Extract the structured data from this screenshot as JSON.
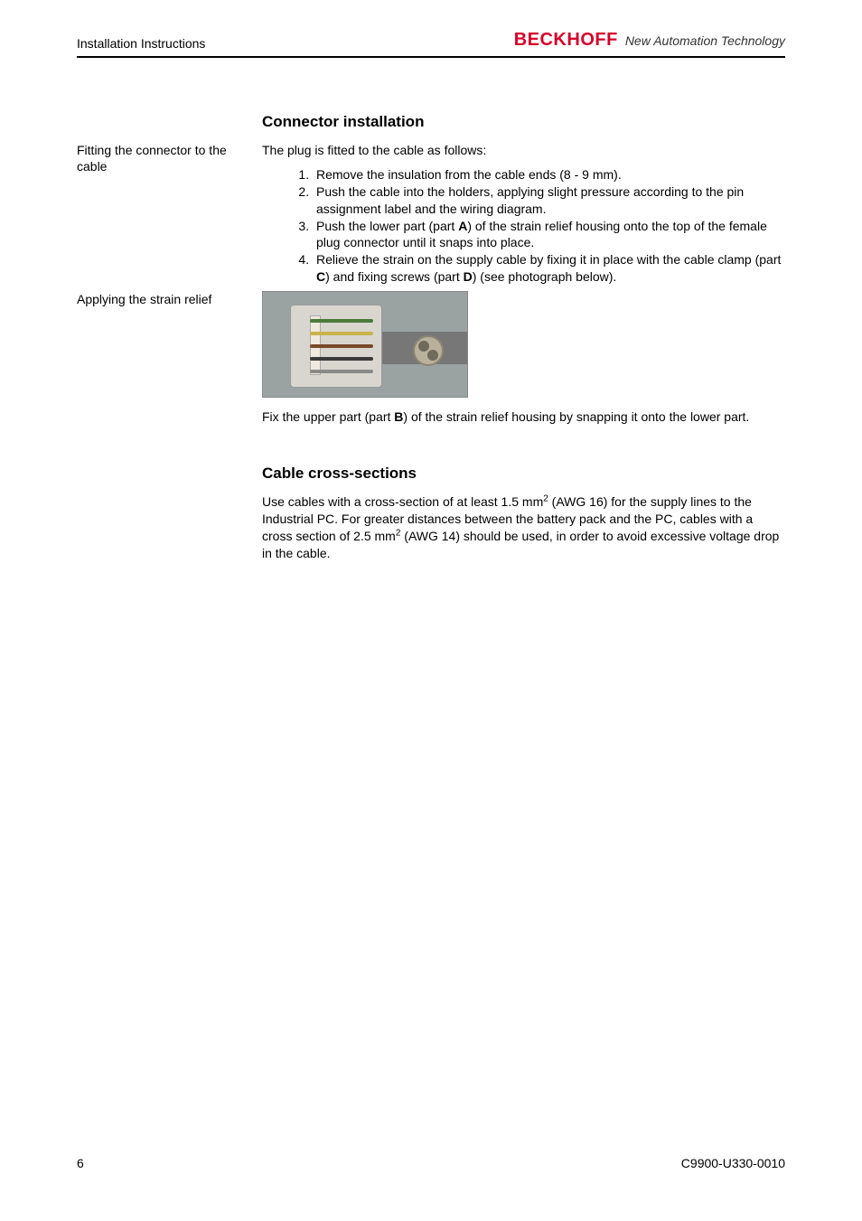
{
  "header": {
    "section_title": "Installation Instructions",
    "brand": "BECKHOFF",
    "tagline": "New Automation Technology"
  },
  "side": {
    "note1": "Fitting the connector to the cable",
    "note2": "Applying the strain relief"
  },
  "section1": {
    "heading": "Connector installation",
    "intro": "The plug is fitted to the cable as follows:",
    "steps": {
      "s1": "Remove the insulation from the cable ends (8 - 9 mm).",
      "s2": "Push the cable into the holders, applying slight pressure according to the pin assignment label and the wiring diagram.",
      "s3a": "Push the lower part (part ",
      "s3b": "A",
      "s3c": ") of the strain relief housing onto the top of the female plug connector until it snaps into place.",
      "s4a": "Relieve the strain on the supply cable by fixing it in place with the cable clamp (part ",
      "s4b": "C",
      "s4c": ") and fixing screws (part ",
      "s4d": "D",
      "s4e": ") (see photograph below)."
    },
    "after_photo_a": "Fix the upper part (part ",
    "after_photo_b": "B",
    "after_photo_c": ") of the strain relief housing by snapping it onto the lower part."
  },
  "section2": {
    "heading": "Cable cross-sections",
    "p_a": "Use cables with a cross-section of at least 1.5 mm",
    "sup1": "2",
    "p_b": " (AWG 16) for the supply lines to the Industrial PC. For greater distances between the battery pack and the PC, cables with a cross section of 2.5 mm",
    "sup2": "2",
    "p_c": " (AWG 14) should be used, in order to avoid excessive voltage drop in the cable."
  },
  "footer": {
    "page_num": "6",
    "doc_id": "C9900-U330-0010"
  },
  "photo": {
    "wire_colors": [
      "#4b7a3a",
      "#c9b34a",
      "#7a4a2a",
      "#3a3a3a",
      "#8a8a8a"
    ],
    "bg": "#9aa3a2",
    "cable_color": "#777777",
    "connector_color": "#d8d6cf"
  }
}
